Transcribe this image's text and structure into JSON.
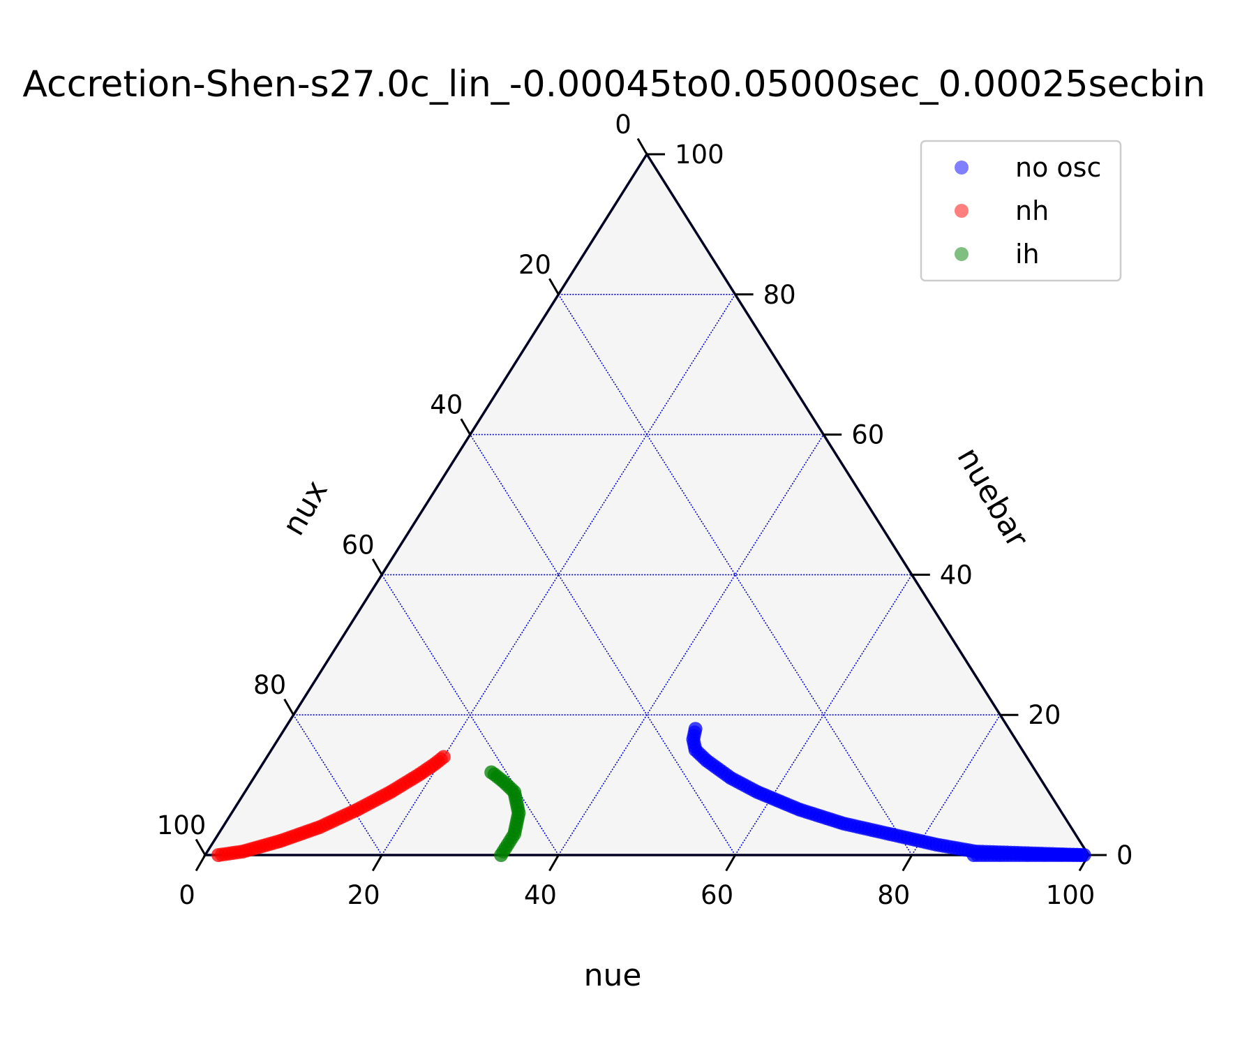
{
  "chart_data": {
    "type": "scatter",
    "subtype": "ternary",
    "title": "Accretion-Shen-s27.0c_lin_-0.00045to0.05000sec_0.00025secbin",
    "axes": {
      "bottom": {
        "label": "nue",
        "ticks": [
          "0",
          "20",
          "40",
          "60",
          "80",
          "100"
        ]
      },
      "right": {
        "label": "nuebar",
        "ticks": [
          "0",
          "20",
          "40",
          "60",
          "80",
          "100"
        ]
      },
      "left": {
        "label": "nux",
        "ticks": [
          "0",
          "20",
          "40",
          "60",
          "80",
          "100"
        ]
      }
    },
    "range": [
      0,
      100
    ],
    "grid": true,
    "grid_step": 20,
    "grid_color": "#0000cc",
    "background_color": "#f5f5f5",
    "legend_position": "top-right",
    "series": [
      {
        "name": "no osc",
        "color": "#0000ff",
        "points": [
          {
            "nue": 87,
            "nuebar": 0
          },
          {
            "nue": 90,
            "nuebar": 0
          },
          {
            "nue": 93,
            "nuebar": 0
          },
          {
            "nue": 95,
            "nuebar": 0
          },
          {
            "nue": 97,
            "nuebar": 0
          },
          {
            "nue": 99.5,
            "nuebar": 0
          },
          {
            "nue": 87,
            "nuebar": 0.5
          },
          {
            "nue": 82,
            "nuebar": 1.5
          },
          {
            "nue": 76,
            "nuebar": 3
          },
          {
            "nue": 70,
            "nuebar": 4.5
          },
          {
            "nue": 64,
            "nuebar": 6.5
          },
          {
            "nue": 58,
            "nuebar": 9
          },
          {
            "nue": 54,
            "nuebar": 11
          },
          {
            "nue": 50,
            "nuebar": 13.5
          },
          {
            "nue": 48,
            "nuebar": 15
          },
          {
            "nue": 47,
            "nuebar": 16.5
          },
          {
            "nue": 46.5,
            "nuebar": 18
          }
        ]
      },
      {
        "name": "nh",
        "color": "#ff0000",
        "points": [
          {
            "nue": 1.5,
            "nuebar": 0
          },
          {
            "nue": 4,
            "nuebar": 0.5
          },
          {
            "nue": 7.5,
            "nuebar": 2
          },
          {
            "nue": 11,
            "nuebar": 4
          },
          {
            "nue": 14,
            "nuebar": 6.5
          },
          {
            "nue": 16.5,
            "nuebar": 9
          },
          {
            "nue": 18.5,
            "nuebar": 11.5
          },
          {
            "nue": 19.5,
            "nuebar": 13
          },
          {
            "nue": 20,
            "nuebar": 14
          }
        ]
      },
      {
        "name": "ih",
        "color": "#008000",
        "points": [
          {
            "nue": 33.5,
            "nuebar": 0
          },
          {
            "nue": 33.5,
            "nuebar": 1
          },
          {
            "nue": 33.5,
            "nuebar": 3
          },
          {
            "nue": 32.5,
            "nuebar": 6
          },
          {
            "nue": 30.5,
            "nuebar": 9
          },
          {
            "nue": 28.5,
            "nuebar": 10.5
          },
          {
            "nue": 27,
            "nuebar": 11.5
          },
          {
            "nue": 26.5,
            "nuebar": 11.8
          }
        ]
      }
    ]
  }
}
